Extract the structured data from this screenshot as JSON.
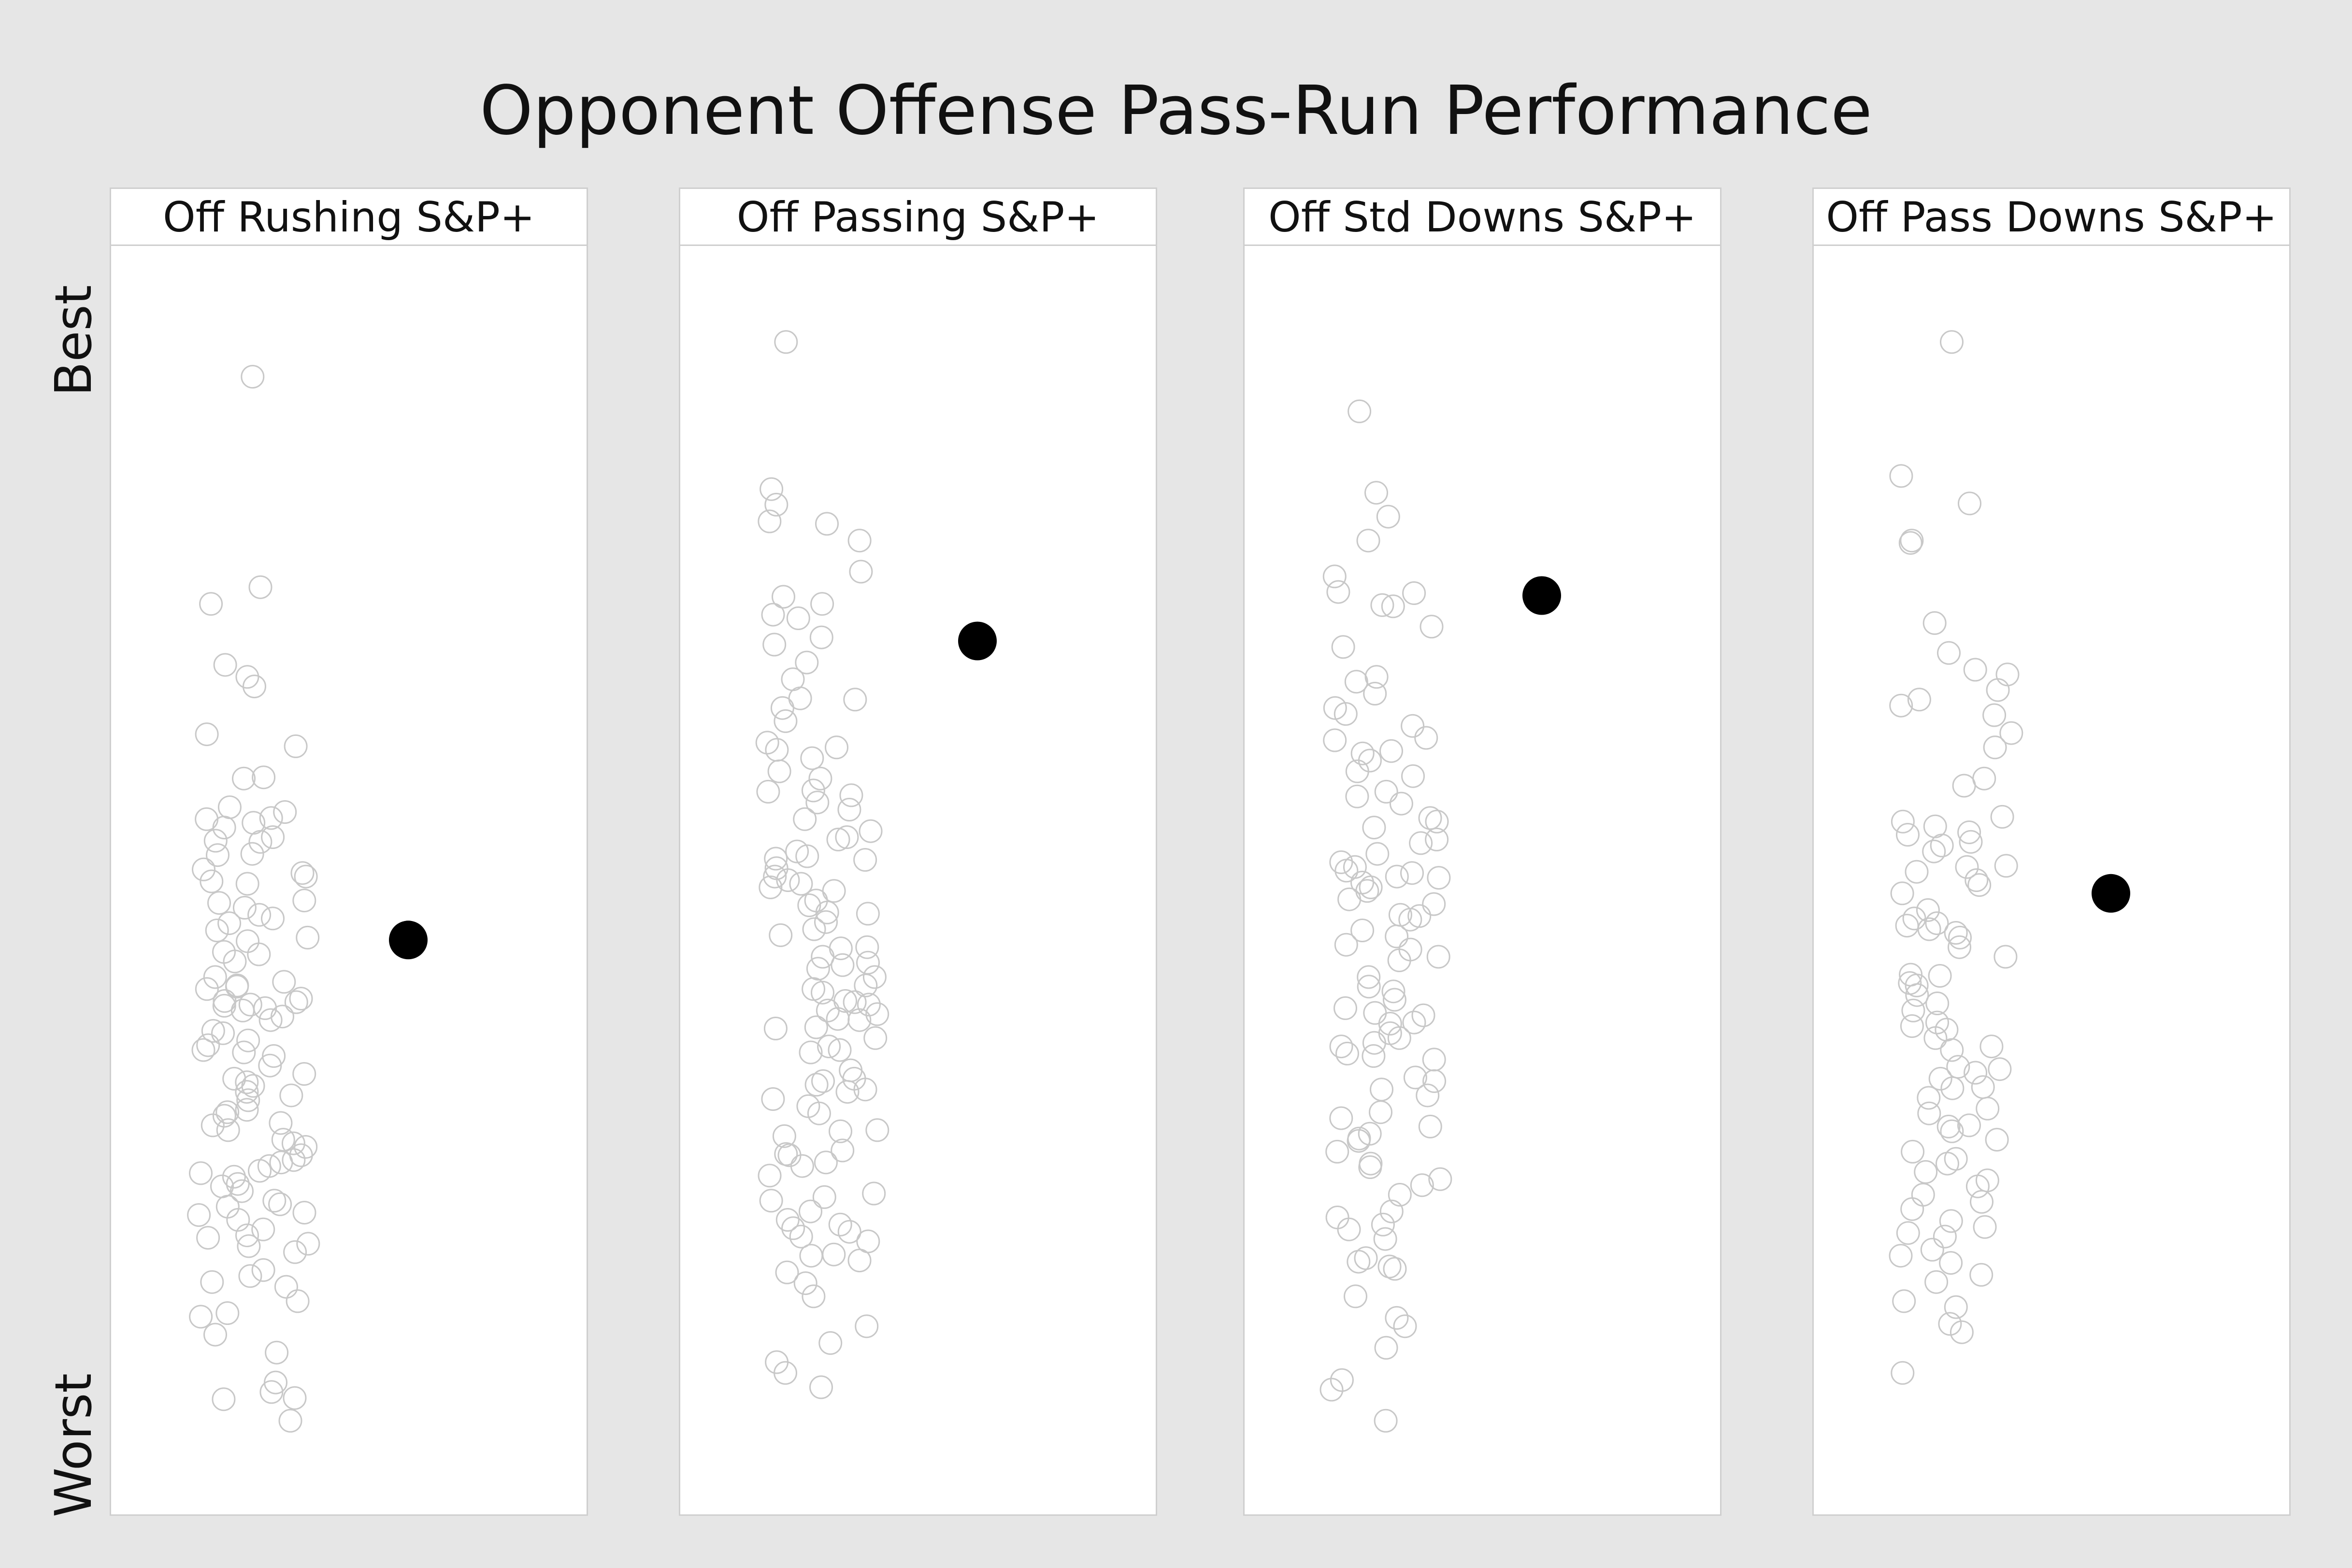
{
  "chart_data": {
    "type": "scatter",
    "title": "Opponent Offense Pass-Run Performance",
    "ylabel_top": "Best",
    "ylabel_bottom": "Worst",
    "y_scale": "relative rank, 0 = Worst, 100 = Best",
    "ylim": [
      0,
      100
    ],
    "colors": {
      "background": "#e6e6e6",
      "panel": "#ffffff",
      "others": "#c8c8c8",
      "highlight": "#000000"
    },
    "panels": [
      {
        "name": "Off Rushing S&P+",
        "highlight": 45.2,
        "others": [
          92.3,
          74.7,
          73.3,
          68.2,
          67.2,
          66.4,
          62.4,
          61.4,
          58.8,
          58.7,
          56.3,
          55.9,
          55.4,
          55.3,
          55.0,
          54.6,
          53.8,
          53.5,
          53.4,
          52.4,
          52.3,
          51.1,
          50.8,
          50.5,
          50.1,
          49.9,
          48.5,
          48.3,
          47.9,
          47.3,
          47.0,
          46.6,
          46.0,
          45.4,
          45.1,
          44.2,
          44.0,
          43.4,
          42.1,
          41.7,
          41.4,
          41.3,
          41.1,
          40.3,
          40.1,
          40.0,
          39.8,
          39.7,
          39.5,
          39.3,
          38.8,
          38.5,
          37.6,
          37.4,
          36.8,
          36.4,
          36.0,
          35.8,
          35.5,
          34.7,
          34.0,
          33.6,
          33.3,
          33.0,
          32.5,
          32.2,
          31.8,
          31.0,
          30.8,
          30.5,
          29.9,
          29.7,
          29.3,
          28.5,
          28.2,
          27.9,
          27.2,
          26.8,
          26.6,
          26.3,
          25.9,
          25.7,
          25.4,
          24.8,
          24.6,
          24.2,
          23.4,
          23.1,
          22.9,
          22.4,
          22.2,
          21.8,
          21.0,
          20.5,
          20.3,
          19.8,
          19.6,
          19.1,
          17.6,
          17.1,
          16.6,
          16.2,
          15.0,
          14.0,
          13.7,
          12.2,
          10.7,
          8.2,
          7.4,
          6.9,
          6.8,
          5.0
        ]
      },
      {
        "name": "Off Passing S&P+",
        "highlight": 70.2,
        "others": [
          95.2,
          82.9,
          81.6,
          80.2,
          80.0,
          78.6,
          76.0,
          73.9,
          73.3,
          72.4,
          72.1,
          70.5,
          69.9,
          68.4,
          67.0,
          65.4,
          65.3,
          64.6,
          63.5,
          61.7,
          61.3,
          61.1,
          60.4,
          59.3,
          58.7,
          57.7,
          57.6,
          57.3,
          56.7,
          56.1,
          55.3,
          54.3,
          53.8,
          53.6,
          52.6,
          52.2,
          52.0,
          51.9,
          51.2,
          50.5,
          50.2,
          49.9,
          49.6,
          49.3,
          48.5,
          48.1,
          47.5,
          47.4,
          46.7,
          46.1,
          45.6,
          44.6,
          44.5,
          43.8,
          43.3,
          43.1,
          42.8,
          42.1,
          41.4,
          41.1,
          40.8,
          40.1,
          40.0,
          39.8,
          39.3,
          39.0,
          38.6,
          38.5,
          37.9,
          37.8,
          37.0,
          36.3,
          36.0,
          35.8,
          34.3,
          33.6,
          33.4,
          33.1,
          32.7,
          32.5,
          31.9,
          31.3,
          30.7,
          29.3,
          29.2,
          28.8,
          27.6,
          27.3,
          27.2,
          26.6,
          26.3,
          25.5,
          24.0,
          23.7,
          23.4,
          22.5,
          21.8,
          21.4,
          21.1,
          20.8,
          20.4,
          20.0,
          18.9,
          18.8,
          18.4,
          17.4,
          16.5,
          15.4,
          12.9,
          11.5,
          9.9,
          9.0,
          7.8
        ]
      },
      {
        "name": "Off Std Downs S&P+",
        "highlight": 74.0,
        "others": [
          89.4,
          82.6,
          80.6,
          78.6,
          75.6,
          74.3,
          74.2,
          73.2,
          73.1,
          71.4,
          69.7,
          67.2,
          66.8,
          65.8,
          64.6,
          64.1,
          63.1,
          62.1,
          61.9,
          61.0,
          60.8,
          60.2,
          59.3,
          58.9,
          57.6,
          57.2,
          56.6,
          55.4,
          55.1,
          54.6,
          53.6,
          53.3,
          52.4,
          51.7,
          51.3,
          51.0,
          50.8,
          50.5,
          50.4,
          50.0,
          49.6,
          49.3,
          48.6,
          48.2,
          47.3,
          47.2,
          46.9,
          46.0,
          45.5,
          44.8,
          44.4,
          43.8,
          43.5,
          42.1,
          41.3,
          40.9,
          40.2,
          39.5,
          39.1,
          38.9,
          38.3,
          38.2,
          37.4,
          37.0,
          36.6,
          36.3,
          35.7,
          35.5,
          35.2,
          33.7,
          33.4,
          32.7,
          32.2,
          30.8,
          30.3,
          29.6,
          29.0,
          28.6,
          28.4,
          27.5,
          26.5,
          26.2,
          25.2,
          24.7,
          23.9,
          22.5,
          22.0,
          21.4,
          21.0,
          20.2,
          18.6,
          18.3,
          17.9,
          17.7,
          15.4,
          13.6,
          12.9,
          11.1,
          8.4,
          7.6,
          5.0
        ]
      },
      {
        "name": "Off Pass Downs S&P+",
        "highlight": 49.1,
        "others": [
          95.2,
          84.0,
          81.7,
          78.6,
          78.4,
          71.7,
          69.2,
          67.8,
          67.4,
          66.1,
          65.3,
          64.8,
          64.0,
          62.5,
          61.3,
          58.7,
          58.1,
          55.5,
          55.1,
          54.7,
          54.2,
          54.0,
          53.4,
          53.1,
          52.6,
          51.4,
          51.3,
          50.9,
          50.2,
          49.8,
          49.1,
          47.7,
          47.0,
          46.6,
          46.4,
          46.1,
          45.8,
          45.4,
          44.6,
          43.8,
          42.3,
          42.2,
          41.6,
          41.4,
          40.6,
          39.9,
          39.3,
          38.3,
          38.0,
          37.7,
          37.0,
          36.3,
          36.0,
          34.6,
          34.4,
          34.1,
          33.6,
          32.9,
          32.8,
          32.0,
          31.1,
          30.7,
          29.7,
          29.6,
          29.2,
          28.5,
          27.5,
          26.9,
          26.5,
          25.8,
          25.1,
          24.6,
          23.9,
          23.3,
          22.7,
          21.7,
          21.2,
          20.7,
          20.4,
          19.3,
          18.8,
          18.2,
          17.2,
          16.6,
          15.0,
          14.5,
          13.1,
          12.4,
          9.0
        ]
      }
    ]
  }
}
